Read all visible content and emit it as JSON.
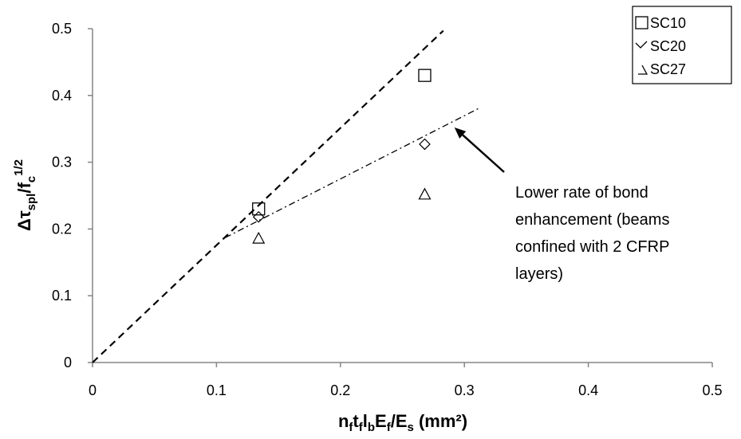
{
  "chart_data": {
    "type": "scatter",
    "xlim": [
      0,
      0.5
    ],
    "ylim": [
      0,
      0.5
    ],
    "x_ticks": [
      "0",
      "0.1",
      "0.2",
      "0.3",
      "0.4",
      "0.5"
    ],
    "y_ticks": [
      "0",
      "0.1",
      "0.2",
      "0.3",
      "0.4",
      "0.5"
    ],
    "grid": false,
    "legend_position": "top-right",
    "series": [
      {
        "name": "SC10",
        "marker": "square",
        "points": [
          [
            0.134,
            0.23
          ],
          [
            0.268,
            0.43
          ]
        ]
      },
      {
        "name": "SC20",
        "marker": "diamond",
        "points": [
          [
            0.134,
            0.218
          ],
          [
            0.268,
            0.327
          ]
        ]
      },
      {
        "name": "SC27",
        "marker": "triangle",
        "points": [
          [
            0.134,
            0.186
          ],
          [
            0.268,
            0.252
          ]
        ]
      }
    ],
    "lines": [
      {
        "style": "dashed",
        "from": [
          0,
          0
        ],
        "to": [
          0.283,
          0.497
        ]
      },
      {
        "style": "dash-dot",
        "from": [
          0.107,
          0.187
        ],
        "to": [
          0.312,
          0.381
        ]
      }
    ],
    "annotation": {
      "lines": [
        "Lower rate of bond",
        "enhancement (beams",
        "confined with 2 CFRP",
        "layers)"
      ],
      "arrow_to": [
        0.292,
        0.352
      ]
    }
  }
}
